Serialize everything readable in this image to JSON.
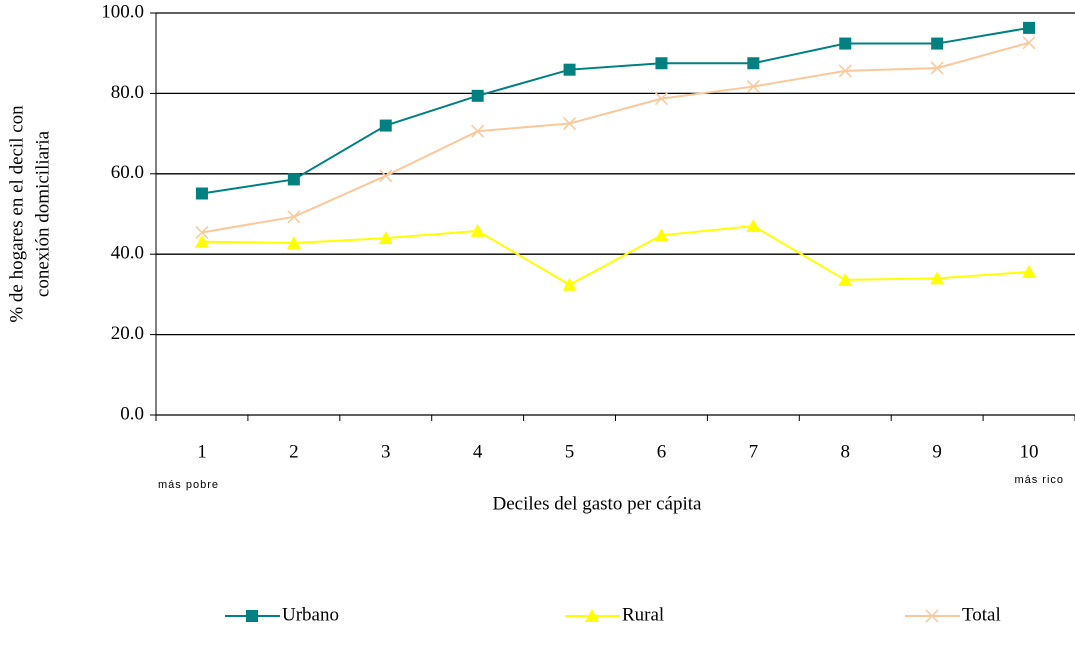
{
  "chart_data": {
    "type": "line",
    "x_label": "Deciles del gasto per cápita",
    "y_label": [
      "% de hogares en el decil con",
      "conexión domiciliaria"
    ],
    "annotations": [
      "más pobre",
      "más rico"
    ],
    "categories": [
      "1",
      "2",
      "3",
      "4",
      "5",
      "6",
      "7",
      "8",
      "9",
      "10"
    ],
    "series": [
      {
        "name": "Urbano",
        "color": "#008080",
        "marker": "square",
        "values": [
          55.1,
          58.6,
          72.0,
          79.4,
          85.9,
          87.5,
          87.5,
          92.4,
          92.4,
          96.3
        ]
      },
      {
        "name": "Rural",
        "color": "#ffff00",
        "marker": "triangle",
        "values": [
          43.1,
          42.8,
          44.0,
          45.8,
          32.4,
          44.7,
          47.0,
          33.6,
          34.0,
          35.6
        ]
      },
      {
        "name": "Total",
        "color": "#f9c89b",
        "marker": "x",
        "values": [
          45.4,
          49.3,
          59.5,
          70.6,
          72.5,
          78.7,
          81.7,
          85.6,
          86.3,
          92.6
        ]
      }
    ],
    "ylim": [
      0,
      100
    ],
    "yticks": [
      {
        "value": 0,
        "label": "0.0"
      },
      {
        "value": 20,
        "label": "20.0"
      },
      {
        "value": 40,
        "label": "40.0"
      },
      {
        "value": 60,
        "label": "60.0"
      },
      {
        "value": 80,
        "label": "80.0"
      },
      {
        "value": 100,
        "label": "100.0"
      }
    ],
    "grid": true,
    "legend": "bottom"
  }
}
